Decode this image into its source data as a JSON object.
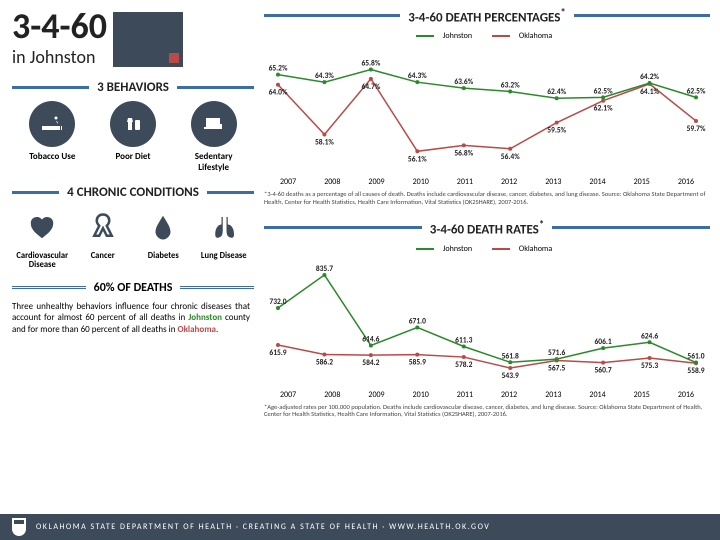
{
  "header": {
    "title": "3-4-60",
    "subtitle": "in Johnston"
  },
  "behaviors": {
    "heading_num": "3",
    "heading_word": "BEHAVIORS",
    "items": [
      "Tobacco Use",
      "Poor Diet",
      "Sedentary Lifestyle"
    ]
  },
  "conditions": {
    "heading_num": "4",
    "heading_word": "CHRONIC CONDITIONS",
    "items": [
      "Cardiovascular Disease",
      "Cancer",
      "Diabetes",
      "Lung Disease"
    ]
  },
  "sixty": {
    "heading": "60% OF DEATHS",
    "paragraph_parts": [
      "Three unhealthy behaviors influence four chronic diseases that account for almost 60 percent of all deaths in ",
      "Johnston",
      " county and for more than 60 percent of all deaths in ",
      "Oklahoma",
      "."
    ]
  },
  "chart_pct": {
    "title": "3-4-60 DEATH PERCENTAGES",
    "sup": "*",
    "legend": {
      "a": "Johnston",
      "b": "Oklahoma"
    },
    "colors": {
      "johnston": "#2a8a2a",
      "oklahoma": "#b94a48",
      "grid": "#cccccc"
    },
    "years": [
      "2007",
      "2008",
      "2009",
      "2010",
      "2011",
      "2012",
      "2013",
      "2014",
      "2015",
      "2016"
    ],
    "johnston": [
      65.2,
      64.3,
      65.8,
      64.3,
      63.6,
      63.2,
      62.4,
      62.5,
      64.2,
      62.5
    ],
    "oklahoma": [
      64.0,
      58.1,
      64.7,
      56.1,
      56.8,
      56.4,
      59.5,
      62.1,
      64.1,
      59.7
    ],
    "ylim": [
      54,
      68
    ],
    "note": "*3-4-60 deaths as a percentage of all causes of death. Deaths include cardiovascular disease, cancer, diabetes, and lung disease. Source: Oklahoma State Department of Health, Center for Health Statistics, Health Care Information, Vital Statistics (OK2SHARE), 2007-2016."
  },
  "chart_rate": {
    "title": "3-4-60 DEATH RATES",
    "sup": "*",
    "legend": {
      "a": "Johnston",
      "b": "Oklahoma"
    },
    "colors": {
      "johnston": "#2a8a2a",
      "oklahoma": "#b94a48",
      "grid": "#cccccc"
    },
    "years": [
      "2007",
      "2008",
      "2009",
      "2010",
      "2011",
      "2012",
      "2013",
      "2014",
      "2015",
      "2016"
    ],
    "johnston": [
      732.0,
      835.7,
      614.6,
      671.0,
      611.3,
      561.8,
      571.6,
      606.1,
      624.6,
      561.0
    ],
    "oklahoma": [
      615.9,
      586.2,
      584.2,
      585.9,
      578.2,
      543.9,
      567.5,
      560.7,
      575.3,
      558.9
    ],
    "ylim": [
      500,
      870
    ],
    "note": "*Age-adjusted rates per 100,000 population. Deaths include cardiovascular disease, cancer, diabetes, and lung disease. Source: Oklahoma State Department of Health, Center for Health Statistics, Health Care Information, Vital Statistics (OK2SHARE), 2007-2016."
  },
  "footer": "OKLAHOMA STATE DEPARTMENT OF HEALTH · CREATING A STATE OF HEALTH · WWW.HEALTH.OK.GOV"
}
